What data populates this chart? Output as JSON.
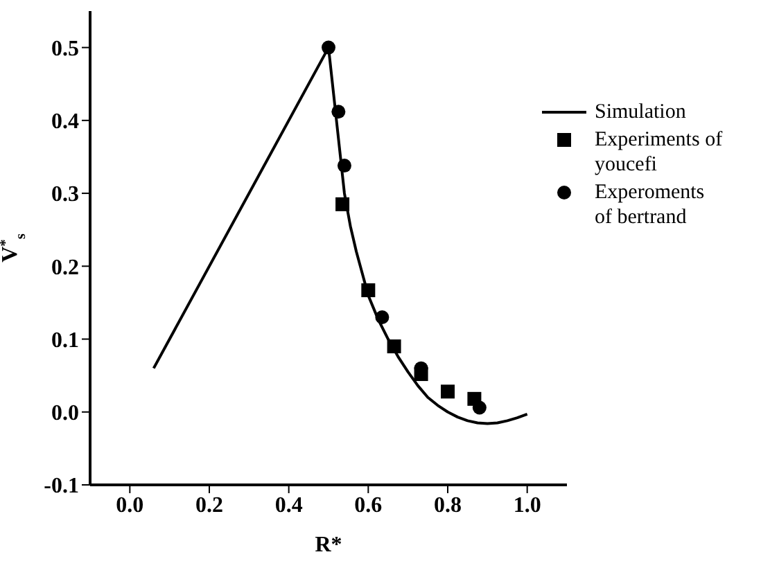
{
  "chart_data": {
    "type": "scatter",
    "xlabel": "R*",
    "ylabel": "V$^{*}$$_{s}$",
    "xlim": [
      -0.1,
      1.1
    ],
    "ylim": [
      -0.1,
      0.55
    ],
    "xticks": [
      {
        "value": 0,
        "label": "0.0"
      },
      0.2,
      0.4,
      0.6,
      0.8,
      {
        "value": 1,
        "label": "1.0"
      }
    ],
    "yticks": [
      -0.1,
      {
        "value": 0,
        "label": "0.0"
      },
      0.1,
      0.2,
      0.3,
      0.4,
      0.5
    ],
    "grid": false,
    "legend": "top right",
    "series": [
      {
        "name": "Simulation",
        "type": "line",
        "color": "#000000",
        "marker": "none",
        "x": [
          0.06,
          0.5,
          0.51,
          0.52,
          0.53,
          0.54,
          0.555,
          0.57,
          0.585,
          0.6,
          0.625,
          0.65,
          0.675,
          0.7,
          0.725,
          0.75,
          0.775,
          0.8,
          0.825,
          0.85,
          0.875,
          0.9,
          0.925,
          0.95,
          0.975,
          1.0
        ],
        "values": [
          0.06,
          0.5,
          0.45,
          0.4,
          0.35,
          0.3,
          0.255,
          0.22,
          0.19,
          0.16,
          0.127,
          0.1,
          0.076,
          0.055,
          0.036,
          0.02,
          0.009,
          0.0,
          -0.007,
          -0.012,
          -0.015,
          -0.016,
          -0.015,
          -0.012,
          -0.008,
          -0.003
        ]
      },
      {
        "name": "Experiments of youcefi",
        "type": "scatter",
        "color": "#000000",
        "marker": "square",
        "x": [
          0.535,
          0.6,
          0.665,
          0.733,
          0.8,
          0.867
        ],
        "values": [
          0.285,
          0.167,
          0.09,
          0.052,
          0.028,
          0.018
        ]
      },
      {
        "name": "Experoments of bertrand",
        "type": "scatter",
        "color": "#000000",
        "marker": "circle",
        "x": [
          0.5,
          0.525,
          0.54,
          0.635,
          0.733,
          0.88
        ],
        "values": [
          0.5,
          0.412,
          0.338,
          0.13,
          0.06,
          0.006
        ]
      }
    ]
  }
}
